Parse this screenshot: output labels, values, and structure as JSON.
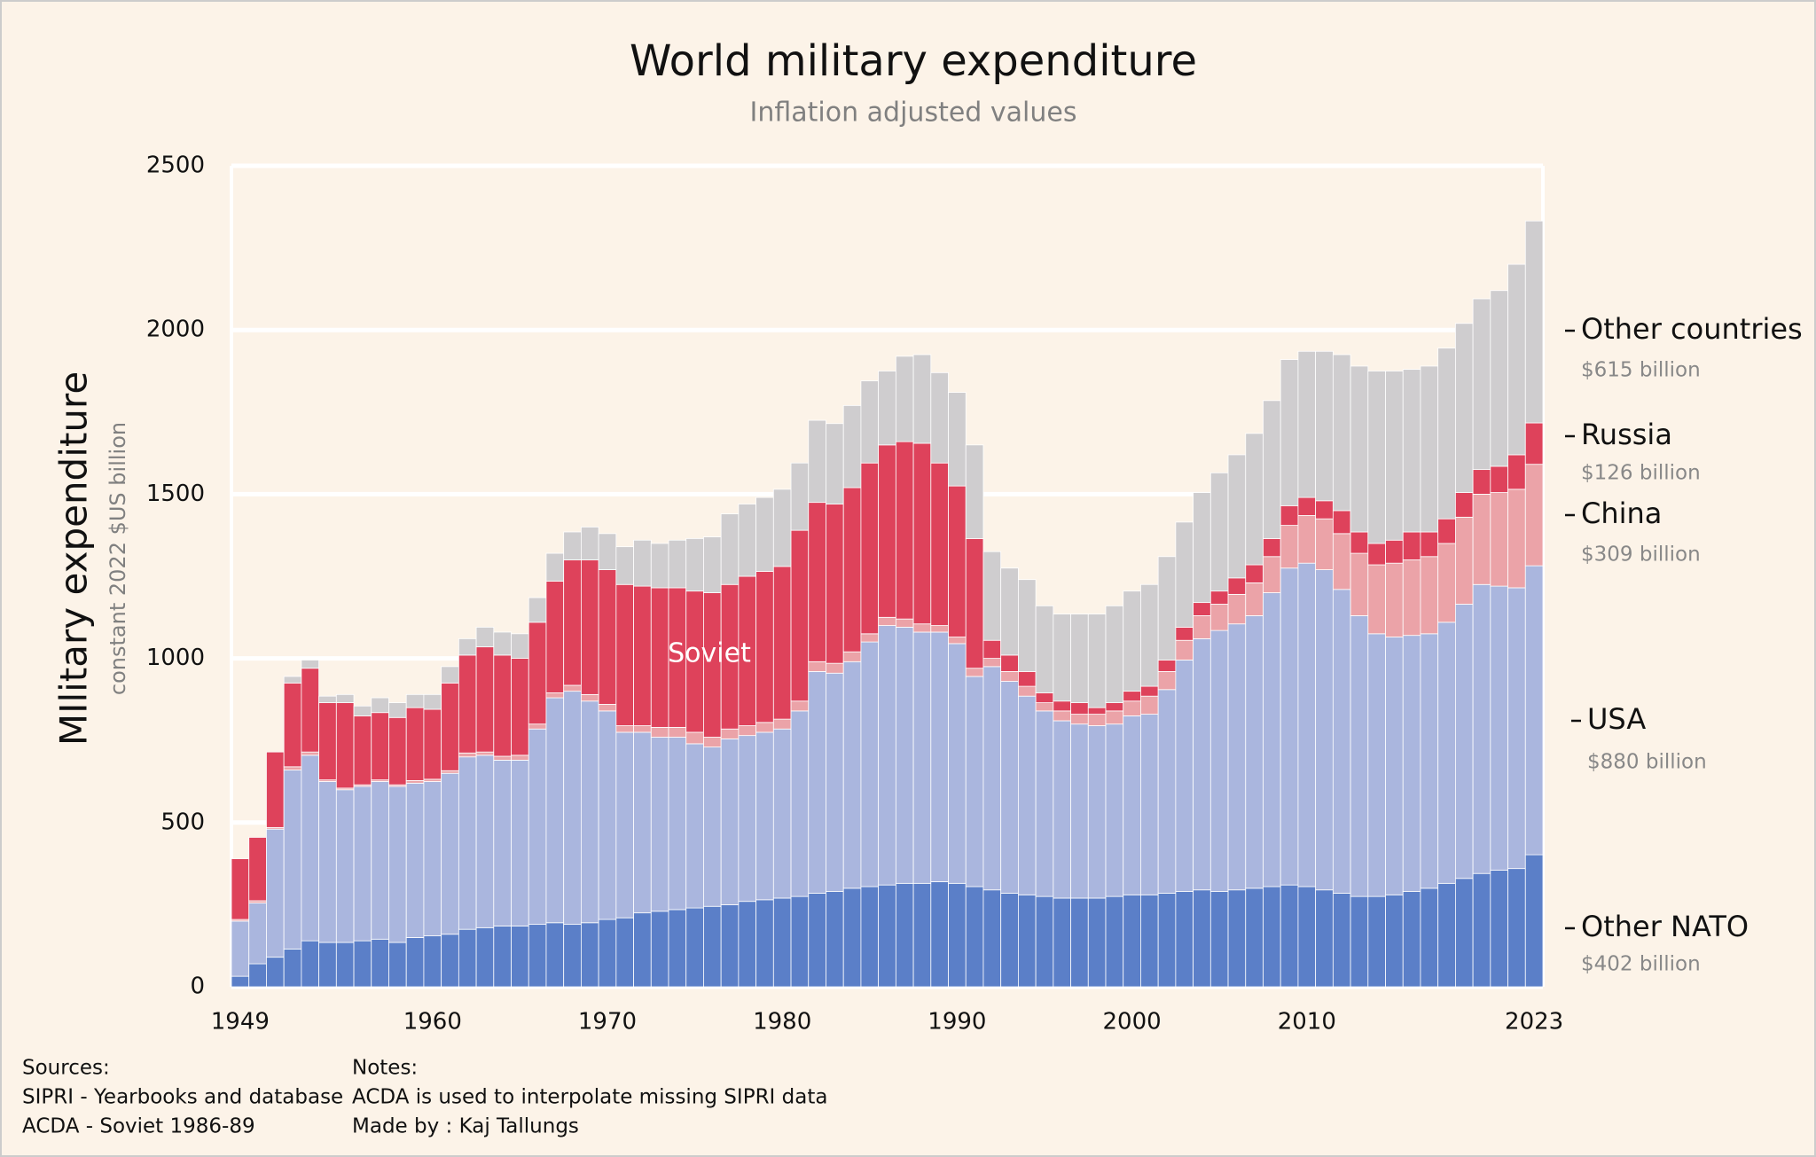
{
  "chart_data": {
    "type": "stacked_bar",
    "title": "World military expenditure",
    "subtitle": "Inflation adjusted values",
    "y_label": "MIlitary expenditure",
    "y_sublabel": "constant 2022 $US billion",
    "annotation": "Soviet",
    "categories": [
      "1949",
      null,
      null,
      null,
      null,
      null,
      null,
      null,
      null,
      null,
      null,
      "1960",
      null,
      null,
      null,
      null,
      null,
      null,
      null,
      null,
      null,
      "1970",
      null,
      null,
      null,
      null,
      null,
      null,
      null,
      null,
      null,
      "1980",
      null,
      null,
      null,
      null,
      null,
      null,
      null,
      null,
      null,
      "1990",
      null,
      null,
      null,
      null,
      null,
      null,
      null,
      null,
      null,
      "2000",
      null,
      null,
      null,
      null,
      null,
      null,
      null,
      null,
      null,
      "2010",
      null,
      null,
      null,
      null,
      null,
      null,
      null,
      null,
      null,
      null,
      null,
      null,
      "2023"
    ],
    "ylim": [
      0,
      2500
    ],
    "yticks": [
      0,
      500,
      1000,
      1500,
      2000,
      2500
    ],
    "grid": true,
    "series": [
      {
        "name": "Other NATO",
        "color": "#5b7fc8",
        "end_label": "$402 billion",
        "values": [
          32,
          70,
          90,
          115,
          140,
          135,
          135,
          140,
          145,
          135,
          150,
          155,
          160,
          175,
          180,
          185,
          185,
          190,
          195,
          190,
          195,
          205,
          210,
          225,
          230,
          235,
          240,
          245,
          250,
          260,
          265,
          270,
          275,
          285,
          290,
          300,
          305,
          310,
          315,
          315,
          320,
          315,
          305,
          295,
          285,
          280,
          275,
          270,
          270,
          270,
          275,
          280,
          280,
          285,
          290,
          295,
          290,
          295,
          300,
          305,
          310,
          305,
          295,
          285,
          275,
          275,
          280,
          290,
          300,
          315,
          330,
          345,
          355,
          360,
          402
        ]
      },
      {
        "name": "USA",
        "color": "#aab6de",
        "end_label": "$880 billion",
        "values": [
          168,
          185,
          390,
          545,
          565,
          490,
          465,
          470,
          480,
          475,
          470,
          470,
          490,
          525,
          525,
          505,
          505,
          595,
          685,
          710,
          675,
          635,
          565,
          550,
          530,
          525,
          500,
          485,
          505,
          505,
          510,
          515,
          565,
          675,
          665,
          690,
          745,
          790,
          780,
          765,
          760,
          730,
          640,
          680,
          645,
          605,
          565,
          540,
          530,
          525,
          525,
          545,
          550,
          620,
          705,
          765,
          795,
          810,
          830,
          895,
          965,
          985,
          975,
          925,
          855,
          800,
          785,
          780,
          775,
          795,
          835,
          880,
          865,
          855,
          880
        ]
      },
      {
        "name": "China",
        "color": "#eba3a8",
        "end_label": "$309 billion",
        "values": [
          5,
          7,
          5,
          10,
          10,
          5,
          5,
          5,
          5,
          5,
          8,
          7,
          8,
          12,
          10,
          12,
          15,
          15,
          15,
          18,
          20,
          20,
          20,
          20,
          30,
          30,
          35,
          30,
          30,
          30,
          30,
          30,
          30,
          30,
          30,
          30,
          25,
          25,
          25,
          25,
          20,
          20,
          25,
          25,
          30,
          30,
          25,
          30,
          30,
          35,
          40,
          45,
          55,
          55,
          60,
          70,
          80,
          90,
          100,
          110,
          130,
          145,
          155,
          170,
          190,
          210,
          225,
          230,
          235,
          240,
          265,
          275,
          285,
          300,
          309
        ]
      },
      {
        "name": "Russia",
        "color": "#de425b",
        "end_label": "$126 billion",
        "values": [
          185,
          193,
          230,
          255,
          255,
          235,
          260,
          210,
          205,
          205,
          222,
          213,
          267,
          298,
          320,
          308,
          295,
          310,
          340,
          382,
          410,
          410,
          430,
          425,
          425,
          425,
          430,
          440,
          440,
          455,
          460,
          465,
          520,
          485,
          485,
          500,
          520,
          525,
          540,
          550,
          495,
          460,
          395,
          55,
          50,
          45,
          30,
          30,
          35,
          20,
          25,
          30,
          30,
          35,
          40,
          40,
          40,
          50,
          55,
          55,
          60,
          55,
          55,
          70,
          65,
          65,
          70,
          85,
          75,
          75,
          75,
          75,
          80,
          105,
          126
        ]
      },
      {
        "name": "Other countries",
        "color": "#cfcdcf",
        "end_label": "$615 billion",
        "values": [
          0,
          0,
          0,
          20,
          25,
          20,
          25,
          30,
          45,
          45,
          40,
          45,
          50,
          50,
          60,
          70,
          75,
          75,
          85,
          85,
          100,
          110,
          115,
          140,
          135,
          145,
          160,
          170,
          215,
          220,
          225,
          235,
          205,
          250,
          245,
          250,
          250,
          225,
          260,
          270,
          275,
          285,
          285,
          270,
          265,
          280,
          265,
          265,
          270,
          285,
          295,
          305,
          310,
          315,
          320,
          335,
          360,
          375,
          400,
          420,
          445,
          445,
          455,
          475,
          505,
          525,
          515,
          495,
          505,
          520,
          515,
          520,
          535,
          580,
          615
        ]
      }
    ],
    "sources": {
      "title": "Sources:",
      "lines": [
        "SIPRI - Yearbooks and database",
        "ACDA - Soviet 1986-89"
      ]
    },
    "notes": {
      "title": "Notes:",
      "lines": [
        "ACDA is used to interpolate missing SIPRI data",
        "Made by : Kaj Tallungs"
      ]
    }
  }
}
